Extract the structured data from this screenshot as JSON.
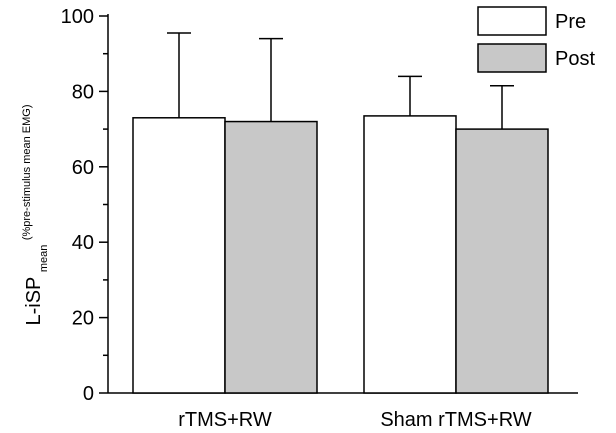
{
  "chart_data": {
    "type": "bar",
    "categories": [
      "rTMS+RW",
      "Sham rTMS+RW"
    ],
    "series": [
      {
        "name": "Pre",
        "values": [
          73,
          73.5
        ],
        "error_upper": [
          95.5,
          84
        ]
      },
      {
        "name": "Post",
        "values": [
          72,
          70
        ],
        "error_upper": [
          94,
          81.5
        ]
      }
    ],
    "ylabel": {
      "main": "L-iSP",
      "subscript": "mean",
      "superscript": "(%pre-stimulus mean EMG)"
    },
    "xlabel": "",
    "ylim": [
      0,
      100
    ],
    "yticks": [
      "0",
      "20",
      "40",
      "60",
      "80",
      "100"
    ],
    "grid": false,
    "legend_position": "top-right",
    "colors": {
      "Pre": "#ffffff",
      "Post": "#c8c8c8",
      "stroke": "#000000"
    }
  }
}
